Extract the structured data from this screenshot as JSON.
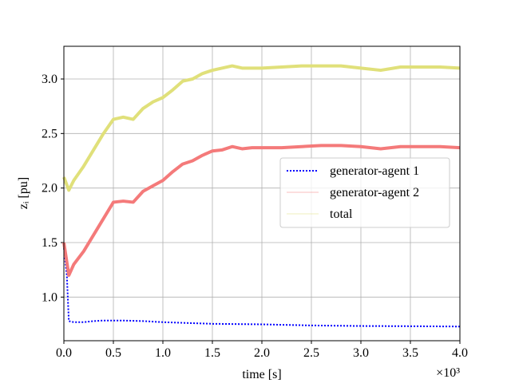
{
  "chart_data": {
    "type": "line",
    "xlabel": "time [s]",
    "ylabel": "zᵢ [pu]",
    "x_offset_label": "×10³",
    "xlim": [
      0,
      4
    ],
    "ylim": [
      0.6,
      3.3
    ],
    "xticks": [
      {
        "value": 0,
        "label": "0.0"
      },
      0.5,
      {
        "value": 1,
        "label": "1.0"
      },
      1.5,
      {
        "value": 2,
        "label": "2.0"
      },
      2.5,
      {
        "value": 3,
        "label": "3.0"
      },
      3.5,
      {
        "value": 4,
        "label": "4.0"
      }
    ],
    "yticks": [
      {
        "value": 1,
        "label": "1.0"
      },
      1.5,
      {
        "value": 2,
        "label": "2.0"
      },
      2.5,
      {
        "value": 3,
        "label": "3.0"
      }
    ],
    "grid": true,
    "legend": "center right",
    "series": [
      {
        "name": "generator-agent 1",
        "color": "#0000ff",
        "linestyle": "dotted",
        "x": [
          0,
          0.03,
          0.05,
          0.1,
          0.2,
          0.3,
          0.4,
          0.6,
          0.8,
          1.0,
          1.5,
          2.0,
          2.5,
          3.0,
          3.5,
          4.0
        ],
        "values": [
          1.45,
          1.2,
          0.78,
          0.77,
          0.77,
          0.78,
          0.785,
          0.785,
          0.78,
          0.77,
          0.755,
          0.75,
          0.74,
          0.735,
          0.733,
          0.73
        ]
      },
      {
        "name": "generator-agent 2",
        "color": "#f47a7a",
        "linestyle": "solid",
        "x": [
          0,
          0.05,
          0.1,
          0.2,
          0.3,
          0.4,
          0.5,
          0.6,
          0.7,
          0.8,
          0.9,
          1.0,
          1.1,
          1.2,
          1.3,
          1.4,
          1.5,
          1.6,
          1.7,
          1.8,
          1.9,
          2.0,
          2.2,
          2.4,
          2.6,
          2.8,
          3.0,
          3.2,
          3.4,
          3.6,
          3.8,
          4.0
        ],
        "values": [
          1.5,
          1.2,
          1.3,
          1.42,
          1.57,
          1.72,
          1.87,
          1.88,
          1.87,
          1.97,
          2.02,
          2.07,
          2.15,
          2.22,
          2.25,
          2.3,
          2.34,
          2.35,
          2.38,
          2.36,
          2.37,
          2.37,
          2.37,
          2.38,
          2.39,
          2.39,
          2.38,
          2.36,
          2.38,
          2.38,
          2.38,
          2.37
        ]
      },
      {
        "name": "total",
        "color": "#e0e07a",
        "linestyle": "solid",
        "x": [
          0,
          0.05,
          0.1,
          0.2,
          0.3,
          0.4,
          0.5,
          0.6,
          0.7,
          0.8,
          0.9,
          1.0,
          1.1,
          1.2,
          1.3,
          1.4,
          1.5,
          1.6,
          1.7,
          1.8,
          1.9,
          2.0,
          2.2,
          2.4,
          2.6,
          2.8,
          3.0,
          3.2,
          3.4,
          3.6,
          3.8,
          4.0
        ],
        "values": [
          2.1,
          1.98,
          2.07,
          2.2,
          2.35,
          2.5,
          2.63,
          2.65,
          2.63,
          2.73,
          2.79,
          2.83,
          2.9,
          2.98,
          3.0,
          3.05,
          3.08,
          3.1,
          3.12,
          3.1,
          3.1,
          3.1,
          3.11,
          3.12,
          3.12,
          3.12,
          3.1,
          3.08,
          3.11,
          3.11,
          3.11,
          3.1
        ]
      }
    ]
  }
}
